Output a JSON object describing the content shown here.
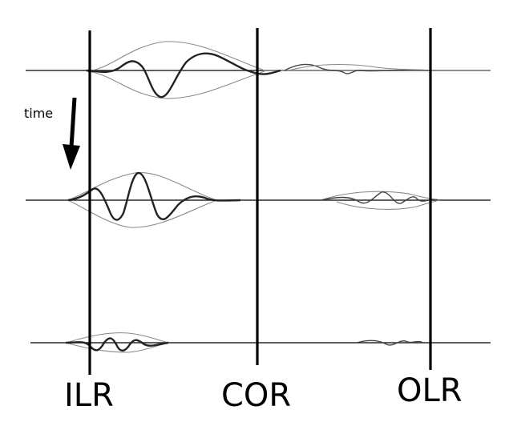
{
  "labels": {
    "time": "time",
    "ilr": "ILR",
    "cor": "COR",
    "olr": "OLR"
  },
  "colors": {
    "ink": "#000000",
    "envelope": "#8a8a8a",
    "background": "#ffffff"
  }
}
